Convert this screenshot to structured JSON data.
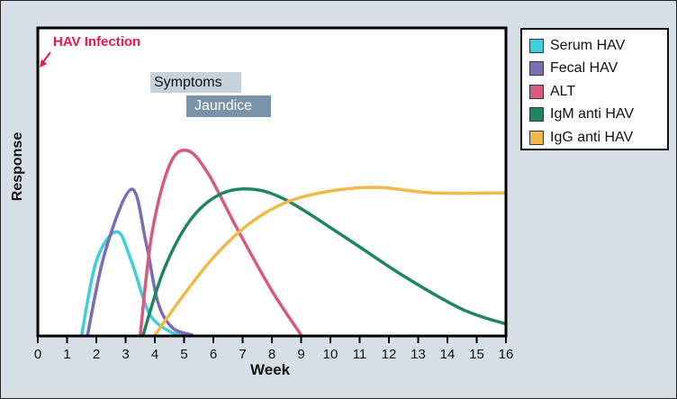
{
  "chart_data": {
    "type": "line",
    "title": "",
    "xlabel": "Week",
    "ylabel": "Response",
    "xlim": [
      0,
      16
    ],
    "ylim": [
      0,
      100
    ],
    "x_ticks": [
      "0",
      "1",
      "2",
      "3",
      "4",
      "5",
      "6",
      "7",
      "8",
      "9",
      "10",
      "11",
      "12",
      "13",
      "14",
      "15",
      "16"
    ],
    "grid": false,
    "legend_position": "right",
    "series": [
      {
        "name": "Serum HAV",
        "color": "#3ecfdc",
        "points": [
          [
            1.5,
            0
          ],
          [
            2.0,
            40
          ],
          [
            2.7,
            56
          ],
          [
            3.2,
            40
          ],
          [
            3.8,
            12
          ],
          [
            4.5,
            2
          ],
          [
            5.0,
            0
          ]
        ]
      },
      {
        "name": "Fecal HAV",
        "color": "#7b6cb4",
        "points": [
          [
            1.7,
            0
          ],
          [
            2.3,
            45
          ],
          [
            3.2,
            79
          ],
          [
            3.7,
            50
          ],
          [
            4.1,
            18
          ],
          [
            4.6,
            4
          ],
          [
            5.3,
            0
          ]
        ]
      },
      {
        "name": "ALT",
        "color": "#d95a7a",
        "points": [
          [
            3.5,
            0
          ],
          [
            3.9,
            55
          ],
          [
            4.5,
            92
          ],
          [
            5.1,
            100
          ],
          [
            5.8,
            88
          ],
          [
            6.8,
            58
          ],
          [
            8.0,
            24
          ],
          [
            9.0,
            0
          ]
        ]
      },
      {
        "name": "IgM anti HAV",
        "color": "#1e8560",
        "points": [
          [
            3.6,
            0
          ],
          [
            4.3,
            35
          ],
          [
            5.2,
            62
          ],
          [
            6.2,
            76
          ],
          [
            7.3,
            79
          ],
          [
            8.5,
            73
          ],
          [
            10.5,
            53
          ],
          [
            12.5,
            32
          ],
          [
            14.5,
            14
          ],
          [
            16,
            6
          ]
        ]
      },
      {
        "name": "IgG anti HAV",
        "color": "#f0b94a",
        "points": [
          [
            4.0,
            0
          ],
          [
            5.0,
            22
          ],
          [
            6.0,
            42
          ],
          [
            7.2,
            60
          ],
          [
            8.5,
            72
          ],
          [
            10,
            78
          ],
          [
            11.6,
            80
          ],
          [
            13.5,
            77
          ],
          [
            16,
            77
          ]
        ]
      }
    ],
    "annotations": [
      {
        "text": "HAV Infection",
        "x": 0,
        "color": "#e8174f",
        "type": "arrow"
      },
      {
        "text": "Symptoms",
        "x_start": 3.8,
        "x_end": 6.9,
        "type": "bar"
      },
      {
        "text": "Jaundice",
        "x_start": 5.1,
        "x_end": 8.0,
        "type": "bar"
      }
    ]
  },
  "annotations": {
    "infection": "HAV Infection",
    "symptoms": "Symptoms",
    "jaundice": "Jaundice"
  },
  "axes": {
    "xlabel": "Week",
    "ylabel": "Response"
  },
  "legend": {
    "items": [
      {
        "label": "Serum HAV",
        "color": "#3ecfdc"
      },
      {
        "label": "Fecal HAV",
        "color": "#7b6cb4"
      },
      {
        "label": "ALT",
        "color": "#d95a7a"
      },
      {
        "label": "IgM anti HAV",
        "color": "#1e8560"
      },
      {
        "label": "IgG anti HAV",
        "color": "#f0b94a"
      }
    ]
  }
}
